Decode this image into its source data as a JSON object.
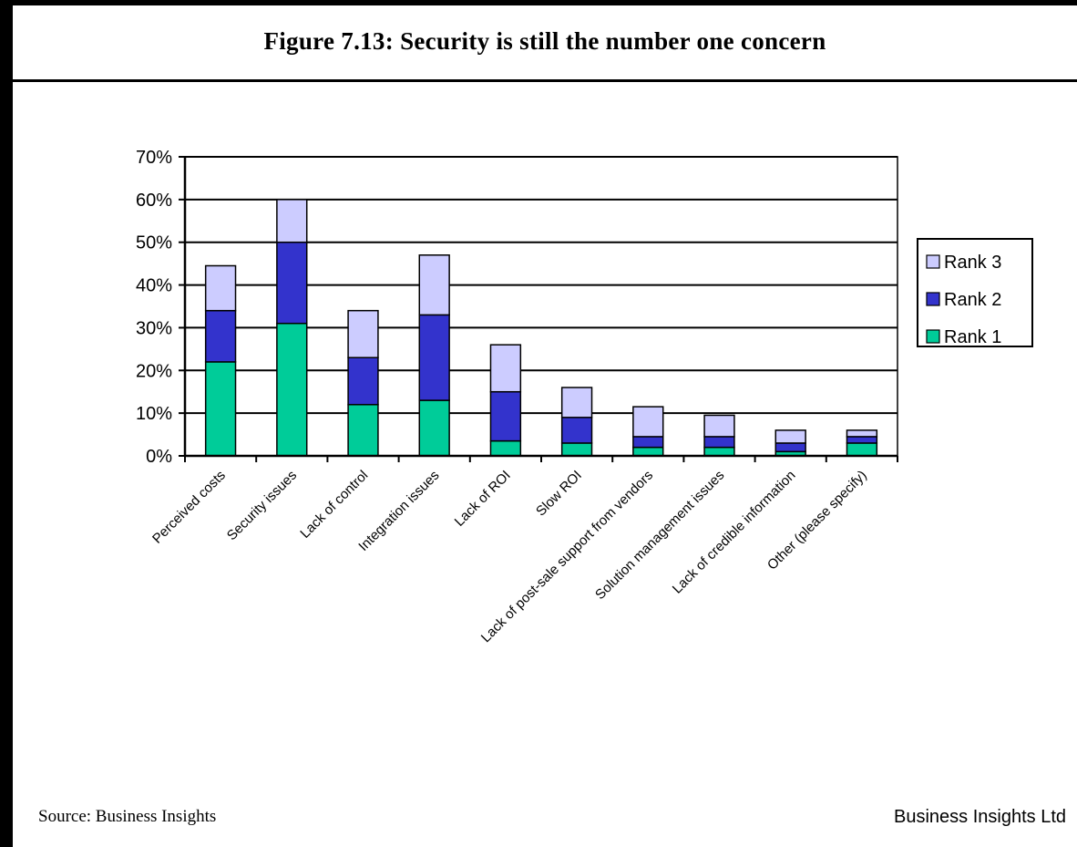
{
  "figure": {
    "title": "Figure 7.13: Security is still the number one concern",
    "source": "Source: Business Insights",
    "publisher": "Business Insights Ltd"
  },
  "chart_data": {
    "type": "bar",
    "stacked": true,
    "title": "",
    "xlabel": "",
    "ylabel": "",
    "ylim": [
      0,
      70
    ],
    "yticks": [
      "0%",
      "10%",
      "20%",
      "30%",
      "40%",
      "50%",
      "60%",
      "70%"
    ],
    "grid": true,
    "legend_position": "right",
    "categories": [
      "Perceived costs",
      "Security issues",
      "Lack of control",
      "Integration issues",
      "Lack of ROI",
      "Slow ROI",
      "Lack of post-sale support from vendors",
      "Solution management issues",
      "Lack of credible information",
      "Other (please specify)"
    ],
    "series": [
      {
        "name": "Rank 1",
        "color": "#00cc99",
        "values": [
          22,
          31,
          12,
          13,
          3.5,
          3,
          2,
          2,
          1,
          3
        ]
      },
      {
        "name": "Rank 2",
        "color": "#3333cc",
        "values": [
          12,
          19,
          11,
          20,
          11.5,
          6,
          2.5,
          2.5,
          2,
          1.5
        ]
      },
      {
        "name": "Rank 3",
        "color": "#ccccff",
        "values": [
          10.5,
          10,
          11,
          14,
          11,
          7,
          7,
          5,
          3,
          1.5
        ]
      }
    ],
    "legend_order": [
      "Rank 3",
      "Rank 2",
      "Rank 1"
    ]
  }
}
